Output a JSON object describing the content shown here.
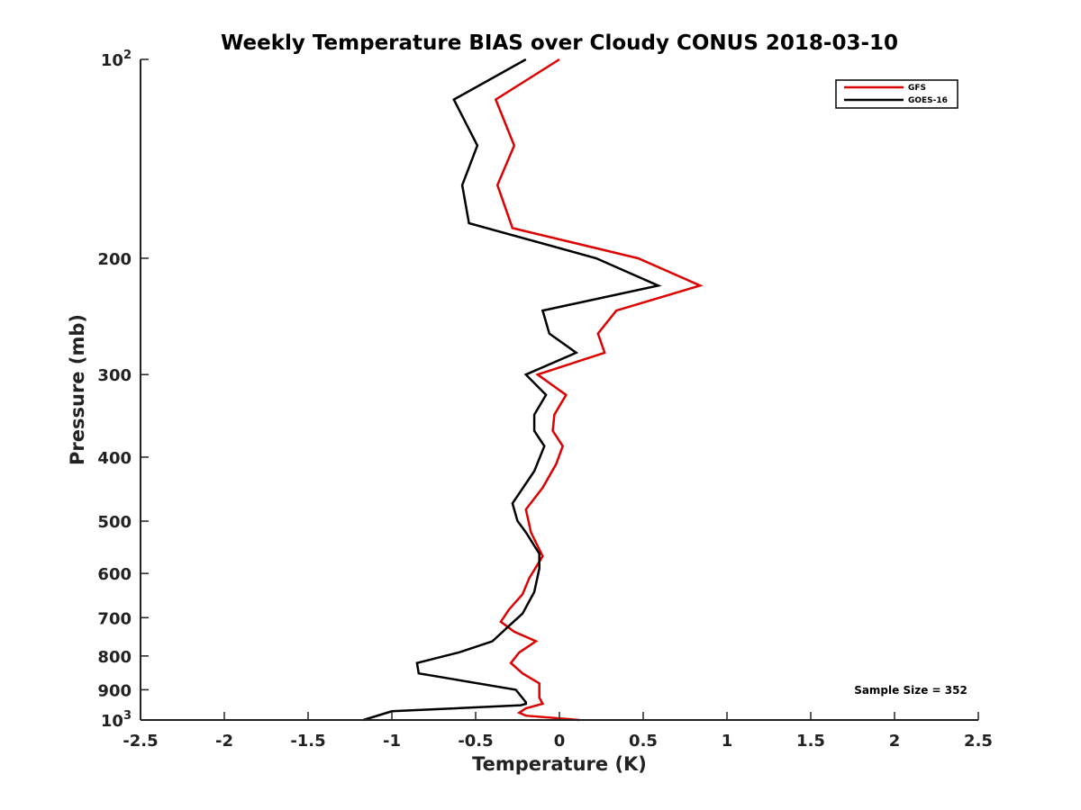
{
  "chart_data": {
    "type": "line",
    "title": "Weekly Temperature BIAS over Cloudy CONUS 2018-03-10",
    "xlabel": "Temperature (K)",
    "ylabel": "Pressure (mb)",
    "xlim": [
      -2.5,
      2.5
    ],
    "ylim": [
      100,
      1000
    ],
    "y_scale": "log",
    "y_reversed": true,
    "grid": false,
    "legend_position": "top-right",
    "x_ticks": [
      -2.5,
      -2,
      -1.5,
      -1,
      -0.5,
      0,
      0.5,
      1,
      1.5,
      2,
      2.5
    ],
    "x_tick_labels": [
      "-2.5",
      "-2",
      "-1.5",
      "-1",
      "-0.5",
      "0",
      "0.5",
      "1",
      "1.5",
      "2",
      "2.5"
    ],
    "y_ticks": [
      100,
      200,
      300,
      400,
      500,
      600,
      700,
      800,
      900,
      1000
    ],
    "y_tick_labels": [
      {
        "base": "10",
        "sup": "2"
      },
      {
        "base": "200",
        "sup": ""
      },
      {
        "base": "300",
        "sup": ""
      },
      {
        "base": "400",
        "sup": ""
      },
      {
        "base": "500",
        "sup": ""
      },
      {
        "base": "600",
        "sup": ""
      },
      {
        "base": "700",
        "sup": ""
      },
      {
        "base": "800",
        "sup": ""
      },
      {
        "base": "900",
        "sup": ""
      },
      {
        "base": "10",
        "sup": "3"
      }
    ],
    "annotation": "Sample Size = 352",
    "series": [
      {
        "name": "GFS",
        "color": "#dd0000",
        "points": [
          [
            0.0,
            100
          ],
          [
            -0.38,
            115
          ],
          [
            -0.27,
            135
          ],
          [
            -0.37,
            155
          ],
          [
            -0.28,
            180
          ],
          [
            0.47,
            200
          ],
          [
            0.84,
            220
          ],
          [
            0.34,
            240
          ],
          [
            0.23,
            260
          ],
          [
            0.27,
            278
          ],
          [
            -0.13,
            300
          ],
          [
            0.04,
            322
          ],
          [
            -0.03,
            345
          ],
          [
            -0.04,
            365
          ],
          [
            0.02,
            385
          ],
          [
            -0.02,
            410
          ],
          [
            -0.1,
            445
          ],
          [
            -0.2,
            480
          ],
          [
            -0.17,
            520
          ],
          [
            -0.1,
            565
          ],
          [
            -0.18,
            610
          ],
          [
            -0.22,
            645
          ],
          [
            -0.3,
            680
          ],
          [
            -0.35,
            710
          ],
          [
            -0.27,
            735
          ],
          [
            -0.14,
            760
          ],
          [
            -0.24,
            790
          ],
          [
            -0.29,
            820
          ],
          [
            -0.22,
            850
          ],
          [
            -0.12,
            880
          ],
          [
            -0.12,
            925
          ],
          [
            -0.1,
            945
          ],
          [
            -0.2,
            960
          ],
          [
            -0.24,
            975
          ],
          [
            -0.2,
            985
          ],
          [
            0.12,
            1000
          ]
        ]
      },
      {
        "name": "GOES-16",
        "color": "#000000",
        "points": [
          [
            -0.2,
            100
          ],
          [
            -0.63,
            115
          ],
          [
            -0.49,
            135
          ],
          [
            -0.58,
            155
          ],
          [
            -0.54,
            177
          ],
          [
            0.22,
            200
          ],
          [
            0.59,
            220
          ],
          [
            -0.1,
            240
          ],
          [
            -0.06,
            260
          ],
          [
            0.1,
            278
          ],
          [
            -0.2,
            300
          ],
          [
            -0.08,
            322
          ],
          [
            -0.15,
            345
          ],
          [
            -0.15,
            365
          ],
          [
            -0.09,
            385
          ],
          [
            -0.15,
            420
          ],
          [
            -0.28,
            470
          ],
          [
            -0.25,
            500
          ],
          [
            -0.2,
            520
          ],
          [
            -0.12,
            560
          ],
          [
            -0.12,
            590
          ],
          [
            -0.15,
            640
          ],
          [
            -0.22,
            690
          ],
          [
            -0.3,
            720
          ],
          [
            -0.4,
            760
          ],
          [
            -0.6,
            790
          ],
          [
            -0.85,
            820
          ],
          [
            -0.84,
            850
          ],
          [
            -0.26,
            900
          ],
          [
            -0.2,
            940
          ],
          [
            -0.2,
            945
          ],
          [
            -0.23,
            950
          ],
          [
            -1.0,
            970
          ],
          [
            -1.17,
            1000
          ]
        ]
      }
    ]
  }
}
